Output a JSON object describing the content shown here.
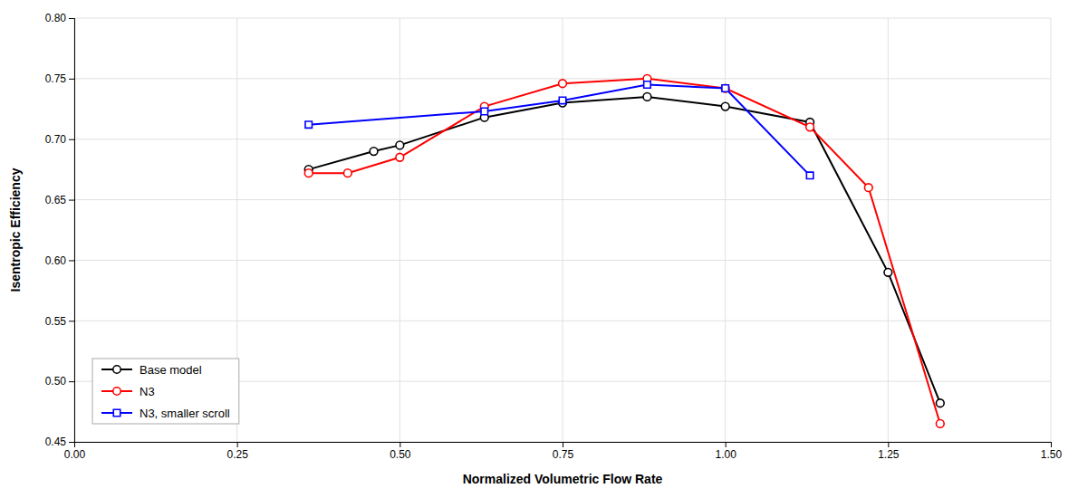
{
  "chart_data": {
    "type": "line",
    "xlabel": "Normalized Volumetric Flow Rate",
    "ylabel": "Isentropic Efficiency",
    "xlim": [
      0.0,
      1.5
    ],
    "ylim": [
      0.45,
      0.8
    ],
    "xticks": [
      {
        "value": 0.0,
        "label": "0.00"
      },
      0.25,
      {
        "value": 0.5,
        "label": "0.50"
      },
      0.75,
      {
        "value": 1.0,
        "label": "1.00"
      },
      1.25,
      {
        "value": 1.5,
        "label": "1.50"
      }
    ],
    "yticks": [
      0.45,
      {
        "value": 0.5,
        "label": "0.50"
      },
      0.55,
      {
        "value": 0.6,
        "label": "0.60"
      },
      0.65,
      {
        "value": 0.7,
        "label": "0.70"
      },
      0.75,
      {
        "value": 0.8,
        "label": "0.80"
      }
    ],
    "grid": true,
    "legend": "lower left",
    "series": [
      {
        "name": "Base model",
        "color": "#000000",
        "marker": "circle",
        "x": [
          0.36,
          0.46,
          0.5,
          0.63,
          0.75,
          0.88,
          1.0,
          1.13,
          1.25,
          1.33
        ],
        "values": [
          0.675,
          0.69,
          0.695,
          0.718,
          0.73,
          0.735,
          0.727,
          0.714,
          0.59,
          0.482
        ]
      },
      {
        "name": "N3",
        "color": "#ff0000",
        "marker": "circle",
        "x": [
          0.36,
          0.42,
          0.5,
          0.63,
          0.75,
          0.88,
          1.0,
          1.13,
          1.22,
          1.33
        ],
        "values": [
          0.672,
          0.672,
          0.685,
          0.727,
          0.746,
          0.75,
          0.742,
          0.71,
          0.66,
          0.465
        ]
      },
      {
        "name": "N3, smaller scroll",
        "color": "#0000ff",
        "marker": "square",
        "x": [
          0.36,
          0.63,
          0.75,
          0.88,
          1.0,
          1.13
        ],
        "values": [
          0.712,
          0.723,
          0.732,
          0.745,
          0.742,
          0.67
        ]
      }
    ]
  }
}
